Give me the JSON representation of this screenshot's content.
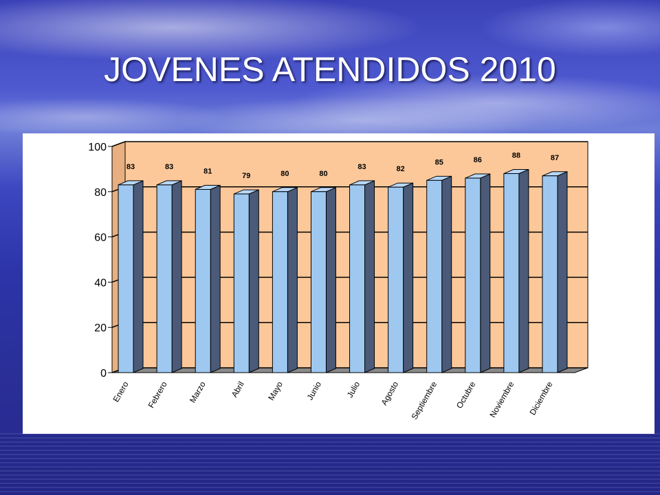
{
  "title": "JOVENES ATENDIDOS 2010",
  "chart_data": {
    "type": "bar",
    "title": "",
    "xlabel": "",
    "ylabel": "",
    "ylim": [
      0,
      100
    ],
    "yticks": [
      0,
      20,
      40,
      60,
      80,
      100
    ],
    "grid": true,
    "categories": [
      "Enero",
      "Febrero",
      "Marzo",
      "Abril",
      "Mayo",
      "Junio",
      "Julio",
      "Agosto",
      "Septiembre",
      "Octubre",
      "Noviembre",
      "Diciembre"
    ],
    "values": [
      83,
      83,
      81,
      79,
      80,
      80,
      83,
      82,
      85,
      86,
      88,
      87
    ],
    "style": "3d-column",
    "colors": {
      "bar_front": "#9ec8f0",
      "bar_side": "#4a5a78",
      "bar_top": "#b8d8f8",
      "plot_wall": "#fcc89a",
      "floor": "#8a8a8a",
      "grid": "#000000"
    }
  }
}
